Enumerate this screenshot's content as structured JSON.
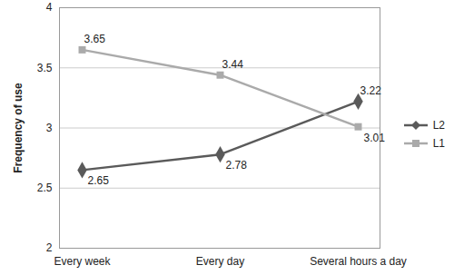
{
  "chart_data": {
    "type": "line",
    "categories": [
      "Every week",
      "Every day",
      "Several hours a day"
    ],
    "series": [
      {
        "name": "L2",
        "color": "#5a5a5a",
        "marker": "diamond",
        "values": [
          2.65,
          2.78,
          3.22
        ]
      },
      {
        "name": "L1",
        "color": "#aaaaaa",
        "marker": "square",
        "values": [
          3.65,
          3.44,
          3.01
        ]
      }
    ],
    "y_label": "Frequency of use",
    "ylim": [
      2,
      4
    ],
    "yticks": [
      2,
      2.5,
      3,
      3.5,
      4
    ],
    "grid": true,
    "data_labels": true,
    "legend": "right"
  }
}
